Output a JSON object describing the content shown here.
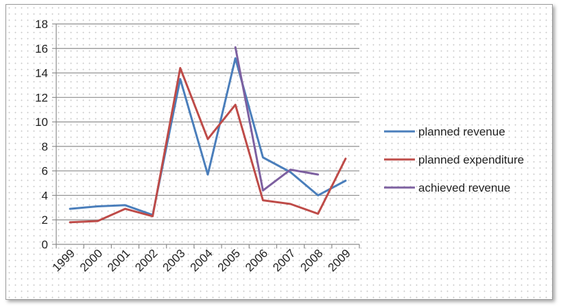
{
  "chart_data": {
    "type": "line",
    "categories": [
      "1999",
      "2000",
      "2001",
      "2002",
      "2003",
      "2004",
      "2005",
      "2006",
      "2007",
      "2008",
      "2009"
    ],
    "series": [
      {
        "name": "planned revenue",
        "color": "#4a7ebb",
        "values": [
          2.9,
          3.1,
          3.2,
          2.4,
          13.5,
          5.7,
          15.2,
          7.1,
          5.9,
          4.0,
          5.2
        ]
      },
      {
        "name": "planned expenditure",
        "color": "#be4b48",
        "values": [
          1.8,
          1.9,
          2.9,
          2.3,
          14.4,
          8.6,
          11.4,
          3.6,
          3.3,
          2.5,
          7.0
        ]
      },
      {
        "name": "achieved revenue",
        "color": "#7d60a0",
        "values": [
          null,
          null,
          null,
          null,
          null,
          null,
          16.1,
          4.4,
          6.1,
          5.7,
          null
        ]
      }
    ],
    "yticks": [
      0,
      2,
      4,
      6,
      8,
      10,
      12,
      14,
      16,
      18
    ],
    "ylim": [
      0,
      18
    ],
    "grid": true,
    "legend_position": "right",
    "title": "",
    "xlabel": "",
    "ylabel": ""
  }
}
